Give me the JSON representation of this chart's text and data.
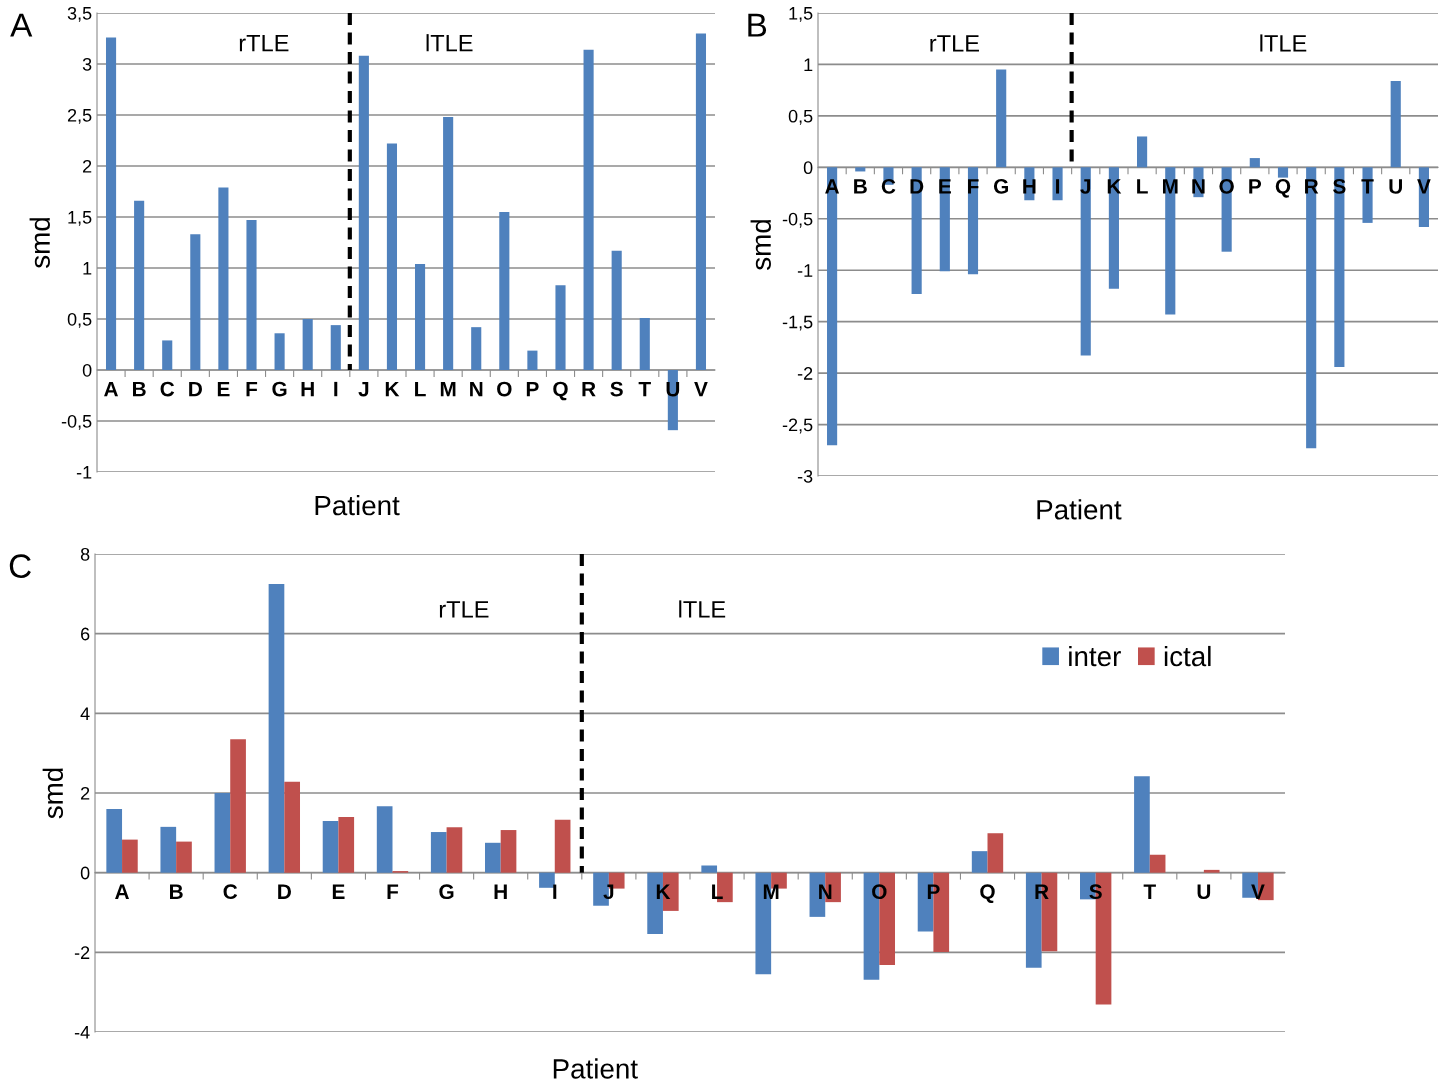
{
  "chart_data": [
    {
      "type": "bar",
      "title": "A",
      "xlabel": "Patient",
      "ylabel": "smd",
      "categories": [
        "A",
        "B",
        "C",
        "D",
        "E",
        "F",
        "G",
        "H",
        "I",
        "J",
        "K",
        "L",
        "M",
        "N",
        "O",
        "P",
        "Q",
        "R",
        "S",
        "T",
        "U",
        "V"
      ],
      "series": [
        {
          "color": "#4f81bd",
          "values": [
            3.26,
            1.66,
            0.29,
            1.33,
            1.79,
            1.47,
            0.36,
            0.5,
            0.44,
            3.08,
            2.22,
            1.04,
            2.48,
            0.42,
            1.55,
            0.19,
            0.83,
            3.14,
            1.17,
            0.51,
            -0.59,
            3.3
          ]
        }
      ],
      "ylim": [
        -1,
        3.5
      ],
      "yticks": [
        -1,
        {
          "value": -0.5,
          "label": "-0,5"
        },
        0,
        {
          "value": 0.5,
          "label": "0,5"
        },
        1,
        {
          "value": 1.5,
          "label": "1,5"
        },
        2,
        {
          "value": 2.5,
          "label": "2,5"
        },
        3,
        {
          "value": 3.5,
          "label": "3,5"
        }
      ],
      "grid": "y",
      "annotations": [
        "rTLE",
        "lTLE"
      ]
    },
    {
      "type": "bar",
      "title": "B",
      "xlabel": "Patient",
      "ylabel": "smd",
      "categories": [
        "A",
        "B",
        "C",
        "D",
        "E",
        "F",
        "G",
        "H",
        "I",
        "J",
        "K",
        "L",
        "M",
        "N",
        "O",
        "P",
        "Q",
        "R",
        "S",
        "T",
        "U",
        "V"
      ],
      "series": [
        {
          "color": "#4f81bd",
          "values": [
            -2.7,
            -0.04,
            -0.17,
            -1.23,
            -1.01,
            -1.04,
            0.95,
            -0.32,
            -0.32,
            -1.83,
            -1.18,
            0.3,
            -1.43,
            -0.29,
            -0.82,
            0.09,
            -0.1,
            -2.73,
            -1.94,
            -0.54,
            0.84,
            -0.58
          ]
        }
      ],
      "ylim": [
        -3,
        1.5
      ],
      "yticks": [
        -3,
        {
          "value": -2.5,
          "label": "-2,5"
        },
        -2,
        {
          "value": -1.5,
          "label": "-1,5"
        },
        -1,
        {
          "value": -0.5,
          "label": "-0,5"
        },
        0,
        {
          "value": 0.5,
          "label": "0,5"
        },
        1,
        {
          "value": 1.5,
          "label": "1,5"
        }
      ],
      "grid": "y",
      "annotations": [
        "rTLE",
        "lTLE"
      ]
    },
    {
      "type": "bar",
      "title": "C",
      "xlabel": "Patient",
      "ylabel": "smd",
      "categories": [
        "A",
        "B",
        "C",
        "D",
        "E",
        "F",
        "G",
        "H",
        "I",
        "J",
        "K",
        "L",
        "M",
        "N",
        "O",
        "P",
        "Q",
        "R",
        "S",
        "T",
        "U",
        "V"
      ],
      "series": [
        {
          "name": "inter",
          "color": "#4f81bd",
          "values": [
            1.6,
            1.15,
            2.0,
            7.25,
            1.3,
            1.67,
            1.02,
            0.75,
            -0.38,
            -0.83,
            -1.54,
            0.18,
            -2.55,
            -1.11,
            -2.69,
            -1.48,
            0.54,
            -2.39,
            -0.67,
            2.42,
            0,
            -0.63
          ]
        },
        {
          "name": "ictal",
          "color": "#c0504d",
          "values": [
            0.83,
            0.78,
            3.35,
            2.28,
            1.4,
            0.04,
            1.14,
            1.07,
            1.33,
            -0.4,
            -0.96,
            -0.74,
            -0.4,
            -0.74,
            -2.32,
            -1.99,
            0.99,
            -1.97,
            -3.31,
            0.45,
            0.07,
            -0.69
          ]
        }
      ],
      "ylim": [
        -4,
        8
      ],
      "yticks": [
        -4,
        -2,
        0,
        2,
        4,
        6,
        8
      ],
      "grid": "y",
      "legend": "top right",
      "annotations": [
        "rTLE",
        "lTLE"
      ]
    }
  ]
}
